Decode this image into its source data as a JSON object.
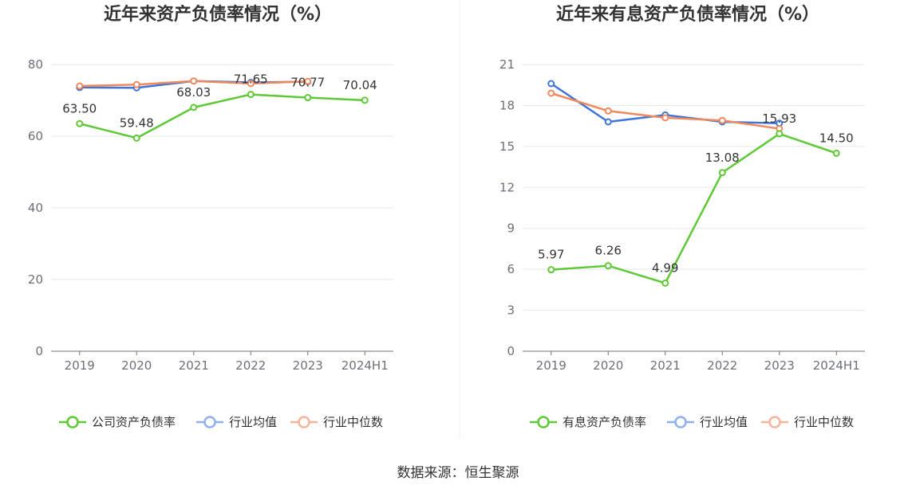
{
  "colors": {
    "company": "#5ec935",
    "industry_avg": "#3f74d9",
    "industry_median": "#f08a5d",
    "legend_avg": "#8fb0ee",
    "legend_median": "#f6b49b",
    "grid": "#e6e8ee",
    "axis": "#6e7079"
  },
  "source": "数据来源：恒生聚源",
  "chart_data": [
    {
      "type": "line",
      "title": "近年来资产负债率情况（%）",
      "categories": [
        "2019",
        "2020",
        "2021",
        "2022",
        "2023",
        "2024H1"
      ],
      "yticks": [
        "0",
        "20",
        "40",
        "60",
        "80"
      ],
      "ylim": [
        0,
        80
      ],
      "grid": true,
      "legend_position": "bottom",
      "series": [
        {
          "name": "公司资产负债率",
          "color_key": "company",
          "values": [
            63.5,
            59.48,
            68.03,
            71.65,
            70.77,
            70.04
          ],
          "labels": [
            "63.50",
            "59.48",
            "68.03",
            "71.65",
            "70.77",
            "70.04"
          ]
        },
        {
          "name": "行业均值",
          "color_key": "industry_avg",
          "values": [
            73.6,
            73.5,
            75.4,
            75.0,
            75.2,
            null
          ]
        },
        {
          "name": "行业中位数",
          "color_key": "industry_median",
          "values": [
            74.0,
            74.4,
            75.4,
            74.7,
            75.3,
            null
          ]
        }
      ]
    },
    {
      "type": "line",
      "title": "近年来有息资产负债率情况（%）",
      "categories": [
        "2019",
        "2020",
        "2021",
        "2022",
        "2023",
        "2024H1"
      ],
      "yticks": [
        "0",
        "3",
        "6",
        "9",
        "12",
        "15",
        "18",
        "21"
      ],
      "ylim": [
        0,
        21
      ],
      "grid": true,
      "legend_position": "bottom",
      "series": [
        {
          "name": "有息资产负债率",
          "color_key": "company",
          "values": [
            5.97,
            6.26,
            4.99,
            13.08,
            15.93,
            14.5
          ],
          "labels": [
            "5.97",
            "6.26",
            "4.99",
            "13.08",
            "15.93",
            "14.50"
          ]
        },
        {
          "name": "行业均值",
          "color_key": "industry_avg",
          "values": [
            19.6,
            16.8,
            17.3,
            16.8,
            16.7,
            null
          ]
        },
        {
          "name": "行业中位数",
          "color_key": "industry_median",
          "values": [
            18.9,
            17.6,
            17.1,
            16.9,
            16.3,
            null
          ]
        }
      ]
    }
  ]
}
